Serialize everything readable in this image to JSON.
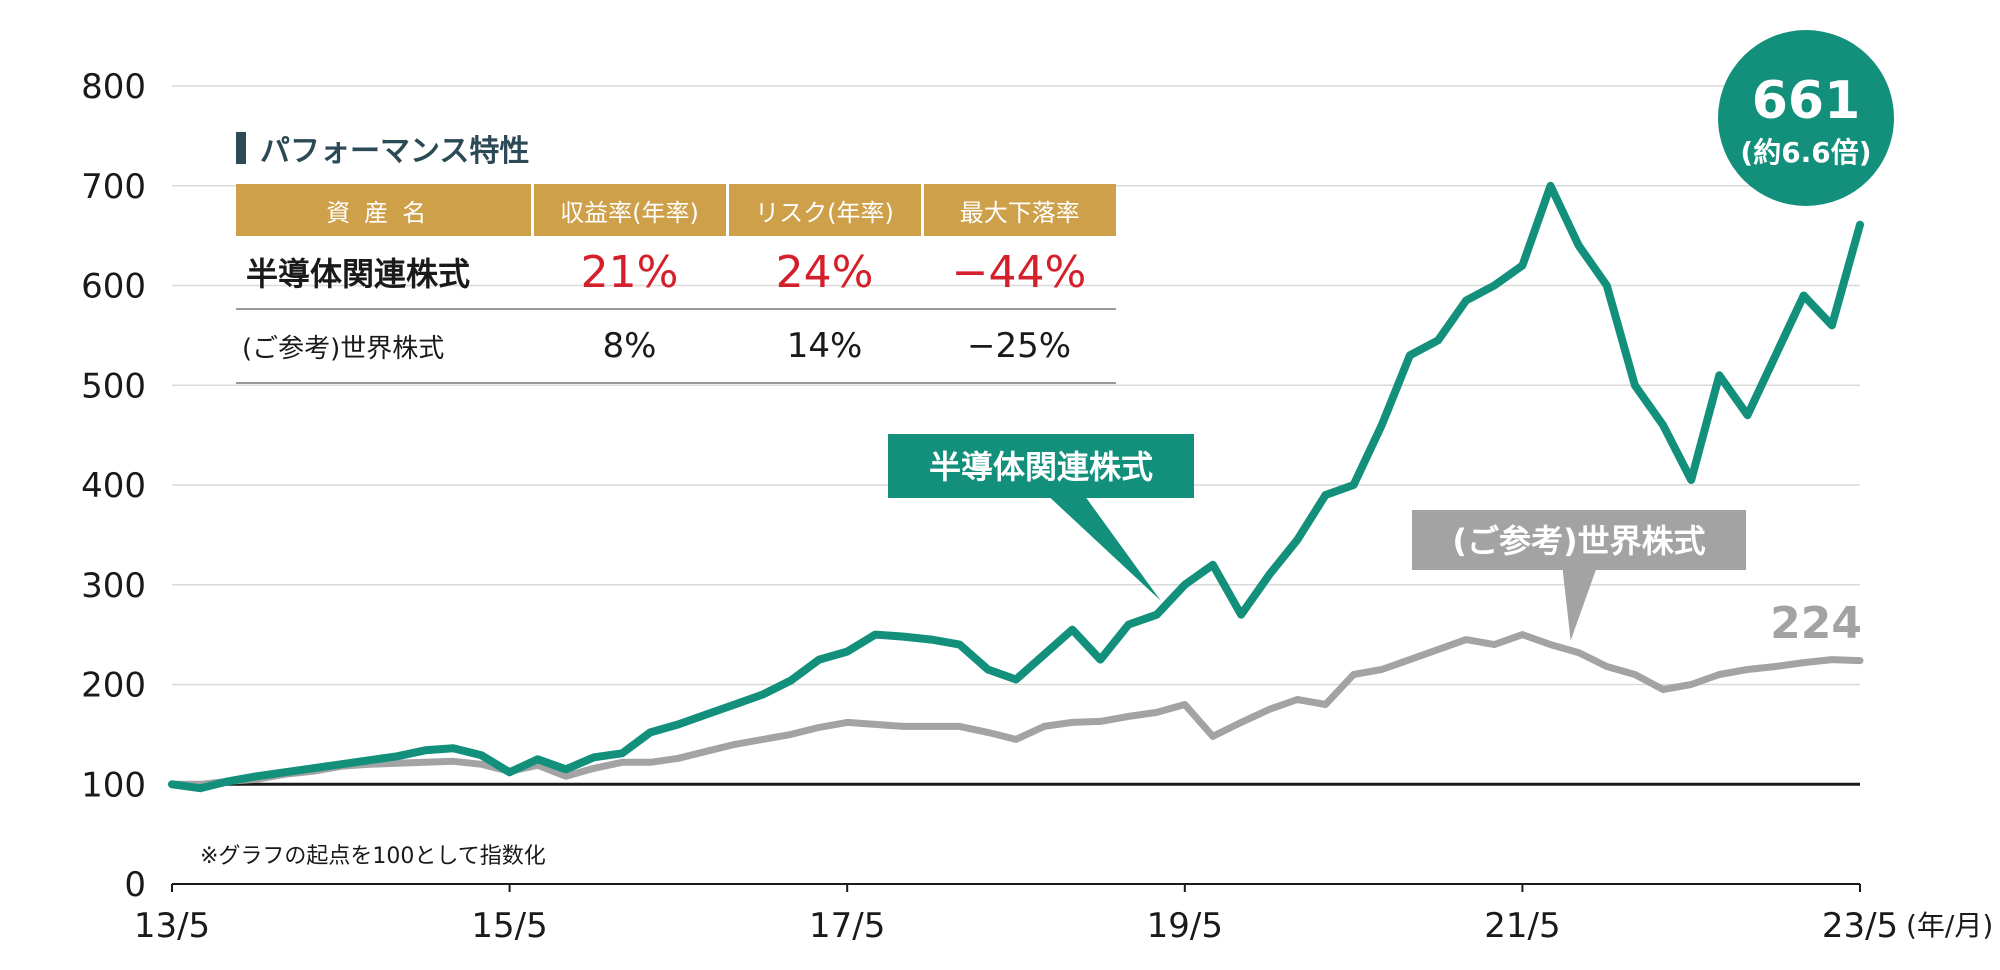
{
  "chart_data": {
    "type": "line",
    "x": [
      "13/5",
      "13/7",
      "13/9",
      "13/11",
      "14/1",
      "14/3",
      "14/5",
      "14/7",
      "14/9",
      "14/11",
      "15/1",
      "15/3",
      "15/5",
      "15/7",
      "15/9",
      "15/11",
      "16/1",
      "16/3",
      "16/5",
      "16/7",
      "16/9",
      "16/11",
      "17/1",
      "17/3",
      "17/5",
      "17/7",
      "17/9",
      "17/11",
      "18/1",
      "18/3",
      "18/5",
      "18/7",
      "18/9",
      "18/11",
      "19/1",
      "19/3",
      "19/5",
      "19/7",
      "19/9",
      "19/11",
      "20/1",
      "20/3",
      "20/5",
      "20/7",
      "20/9",
      "20/11",
      "21/1",
      "21/3",
      "21/5",
      "21/7",
      "21/9",
      "21/11",
      "22/1",
      "22/3",
      "22/5",
      "22/7",
      "22/9",
      "22/11",
      "23/1",
      "23/3",
      "23/5"
    ],
    "series": [
      {
        "name": "半導体関連株式",
        "color": "#13907c",
        "values": [
          100,
          96,
          103,
          108,
          112,
          116,
          120,
          124,
          128,
          134,
          136,
          129,
          112,
          125,
          115,
          127,
          131,
          152,
          160,
          170,
          180,
          190,
          204,
          225,
          233,
          250,
          248,
          245,
          240,
          215,
          205,
          230,
          255,
          225,
          260,
          270,
          300,
          320,
          270,
          310,
          345,
          390,
          400,
          460,
          530,
          545,
          585,
          600,
          620,
          700,
          640,
          600,
          500,
          460,
          405,
          510,
          470,
          530,
          590,
          560,
          661
        ]
      },
      {
        "name": "(ご参考)世界株式",
        "color": "#a3a3a3",
        "values": [
          100,
          100,
          103,
          105,
          110,
          113,
          118,
          120,
          121,
          122,
          123,
          120,
          113,
          119,
          108,
          116,
          122,
          122,
          126,
          133,
          140,
          145,
          150,
          157,
          162,
          160,
          158,
          158,
          158,
          152,
          145,
          158,
          162,
          163,
          168,
          172,
          180,
          148,
          162,
          175,
          185,
          180,
          210,
          215,
          225,
          235,
          245,
          240,
          250,
          240,
          232,
          218,
          210,
          195,
          200,
          210,
          215,
          218,
          222,
          225,
          224
        ]
      }
    ],
    "ylim": [
      0,
      800
    ],
    "yticks": [
      0,
      100,
      200,
      300,
      400,
      500,
      600,
      700,
      800
    ],
    "xticks": [
      "13/5",
      "15/5",
      "17/5",
      "19/5",
      "21/5",
      "23/5"
    ],
    "x_unit": "(年/月)",
    "grid": true,
    "baseline_value": 100,
    "series_labels": [
      "半導体関連株式",
      "(ご参考)世界株式"
    ],
    "end_labels": {
      "main_value": "661",
      "main_note": "(約6.6倍)",
      "ref_value": "224"
    }
  },
  "performance": {
    "title": "パフォーマンス特性",
    "headers": [
      "資産名",
      "収益率(年率)",
      "リスク(年率)",
      "最大下落率"
    ],
    "rows": [
      [
        "半導体関連株式",
        "21%",
        "24%",
        "−44%"
      ],
      [
        "(ご参考)世界株式",
        "8%",
        "14%",
        "−25%"
      ]
    ]
  },
  "note": "※グラフの起点を100として指数化"
}
